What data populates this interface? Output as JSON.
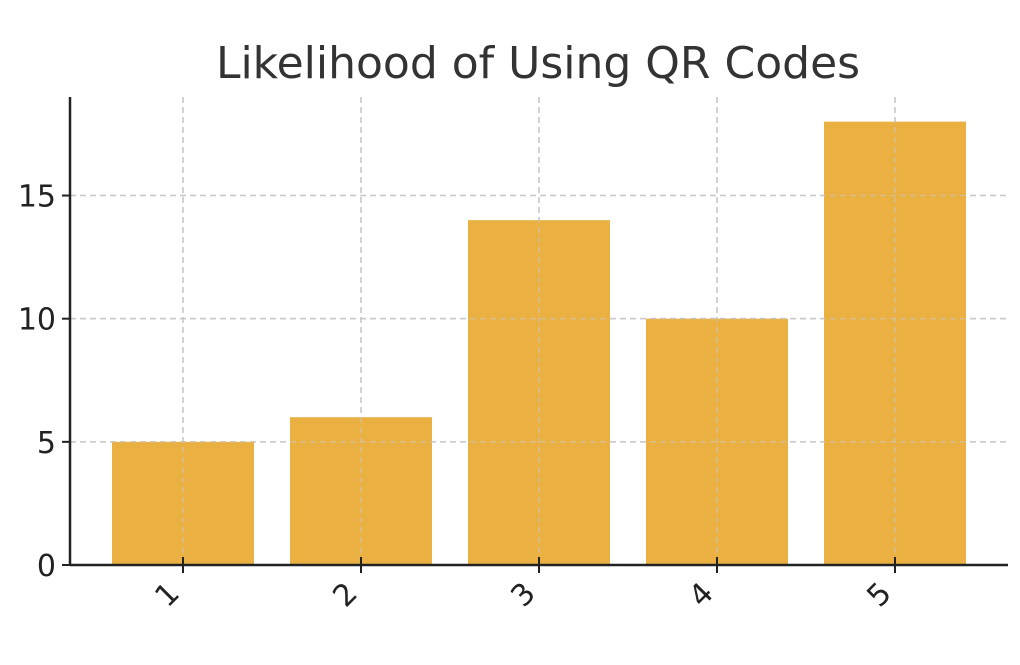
{
  "chart_data": {
    "type": "bar",
    "title": "Likelihood of Using QR Codes",
    "xlabel": "",
    "ylabel": "",
    "categories": [
      "1",
      "2",
      "3",
      "4",
      "5"
    ],
    "values": [
      5,
      6,
      14,
      10,
      18
    ],
    "ylim": [
      0,
      19
    ],
    "yticks": [
      0,
      5,
      10,
      15
    ],
    "grid": true,
    "bar_color": "#ebb042",
    "x_tick_rotation": 45
  }
}
